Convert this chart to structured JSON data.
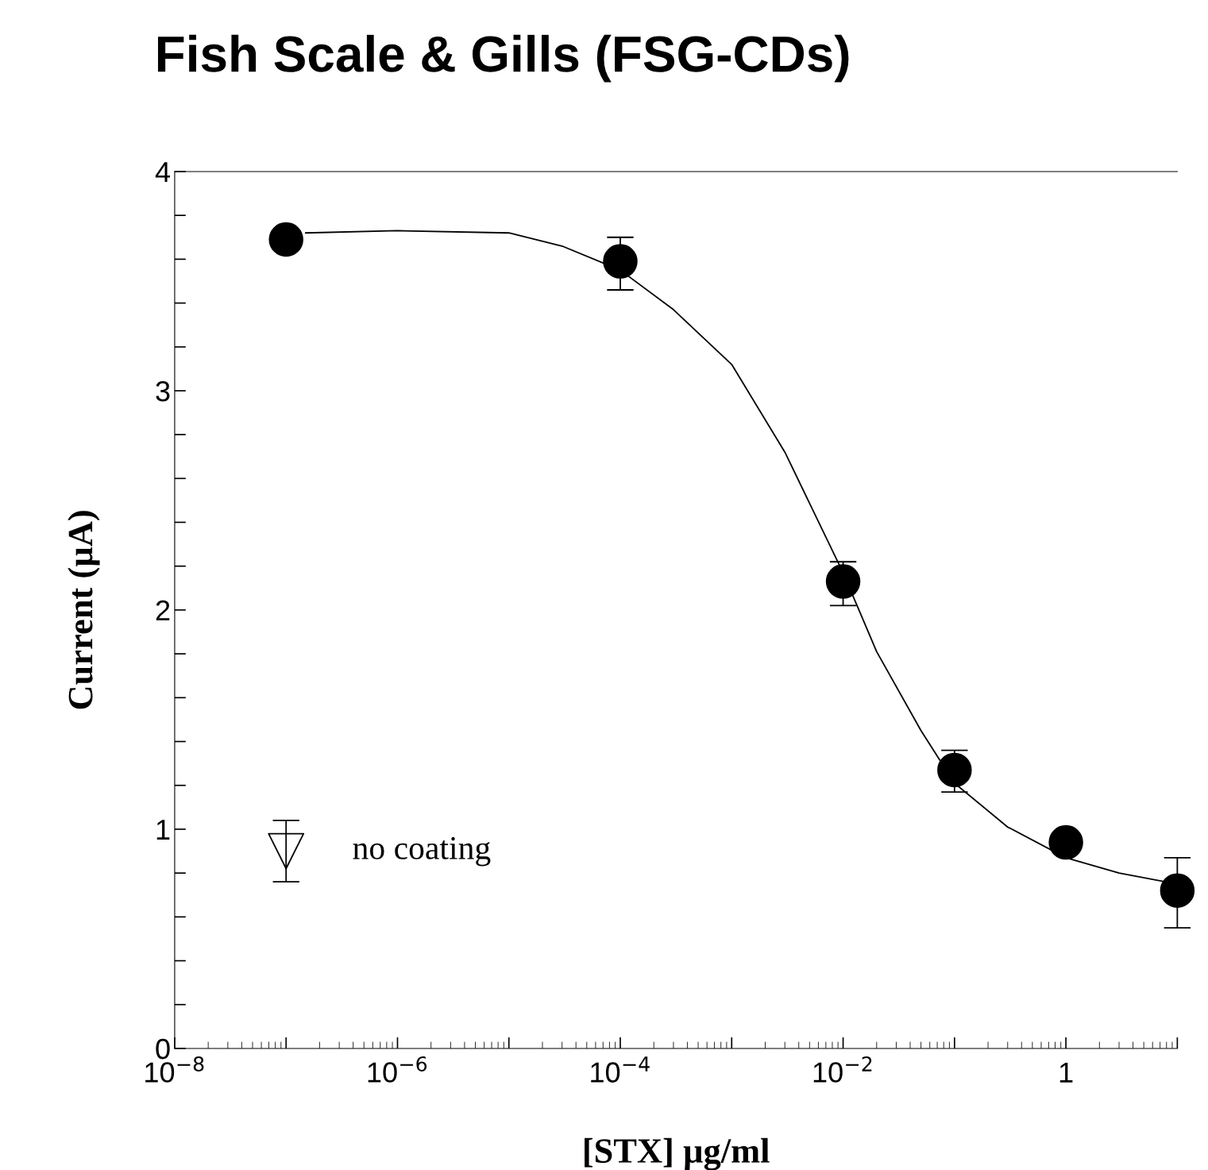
{
  "chart_data": {
    "type": "scatter",
    "title": "Fish Scale & Gills (FSG-CDs)",
    "xlabel": "[STX] µg/ml",
    "ylabel": "Current (µA)",
    "log": "x",
    "xlim": [
      1e-08,
      10
    ],
    "ylim": [
      0,
      4
    ],
    "xticks": [
      {
        "value": 1e-08,
        "label": "10$^{−8}$"
      },
      {
        "value": 1e-07,
        "label": null
      },
      {
        "value": 1e-06,
        "label": "10$^{−6}$"
      },
      {
        "value": 1e-05,
        "label": null
      },
      {
        "value": 0.0001,
        "label": "10$^{−4}$"
      },
      {
        "value": 0.001,
        "label": null
      },
      {
        "value": 0.01,
        "label": "10$^{−2}$"
      },
      {
        "value": 0.1,
        "label": null
      },
      {
        "value": 1,
        "label": "1"
      },
      {
        "value": 10,
        "label": null
      }
    ],
    "yticks": [
      0,
      {
        "value": 0.2,
        "label": null
      },
      {
        "value": 0.4,
        "label": null
      },
      {
        "value": 0.6,
        "label": null
      },
      {
        "value": 0.8,
        "label": null
      },
      1,
      {
        "value": 1.2,
        "label": null
      },
      {
        "value": 1.4,
        "label": null
      },
      {
        "value": 1.6,
        "label": null
      },
      {
        "value": 1.8,
        "label": null
      },
      2,
      {
        "value": 2.2,
        "label": null
      },
      {
        "value": 2.4,
        "label": null
      },
      {
        "value": 2.6,
        "label": null
      },
      {
        "value": 2.8,
        "label": null
      },
      3,
      {
        "value": 3.2,
        "label": null
      },
      {
        "value": 3.4,
        "label": null
      },
      {
        "value": 3.6,
        "label": null
      },
      {
        "value": 3.8,
        "label": null
      },
      4
    ],
    "grid": false,
    "series": [
      {
        "type": "line",
        "color": "#000000",
        "marker": "none",
        "line_style": "solid",
        "x": [
          1.5e-07,
          1e-06,
          1e-05,
          3e-05,
          0.0001,
          0.0003,
          0.001,
          0.003,
          0.01,
          0.02,
          0.05,
          0.1,
          0.3,
          1,
          3,
          10
        ],
        "values": [
          3.72,
          3.73,
          3.72,
          3.66,
          3.55,
          3.37,
          3.12,
          2.72,
          2.17,
          1.81,
          1.45,
          1.21,
          1.01,
          0.87,
          0.8,
          0.75
        ]
      },
      {
        "color": "#000000",
        "marker": "circle",
        "x": [
          1e-07,
          0.0001,
          0.01,
          0.1,
          1,
          10
        ],
        "values": [
          3.69,
          3.59,
          2.13,
          1.27,
          0.94,
          0.72
        ],
        "errors": [
          null,
          [
            3.46,
            3.7
          ],
          [
            2.02,
            2.22
          ],
          [
            1.17,
            1.36
          ],
          null,
          [
            0.55,
            0.87
          ]
        ]
      },
      {
        "name": "no coating",
        "color": "#000000",
        "marker": "triangle",
        "x": [
          1e-07
        ],
        "values": [
          0.9
        ],
        "errors": [
          [
            0.76,
            1.04
          ]
        ]
      }
    ]
  }
}
